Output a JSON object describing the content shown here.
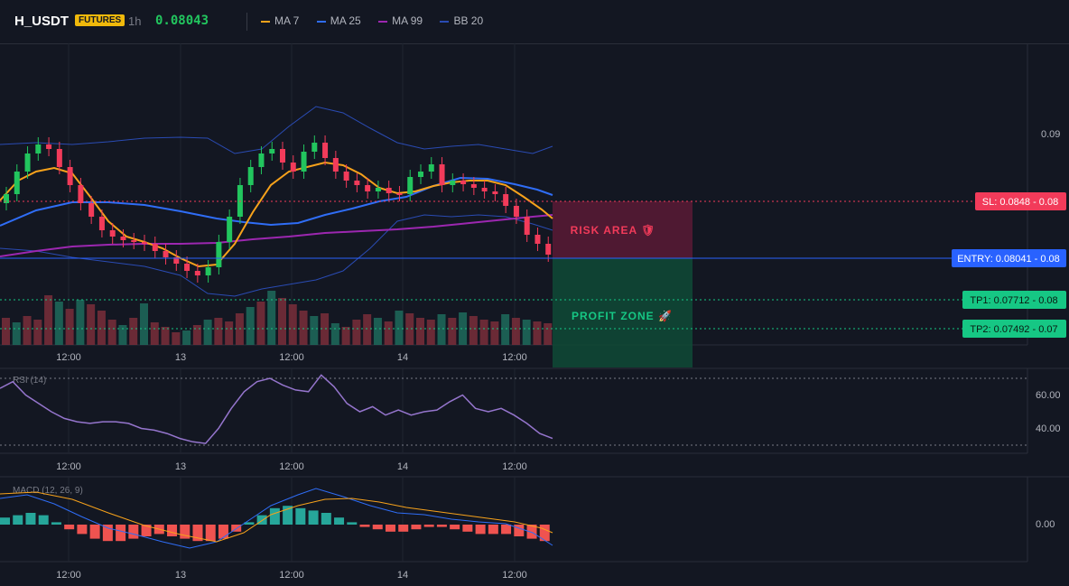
{
  "header": {
    "symbol": "H_USDT",
    "badge": "FUTURES",
    "timeframe": "1h",
    "price": "0.08043",
    "legend": [
      {
        "name": "MA 7",
        "color": "#f7a21b"
      },
      {
        "name": "MA 25",
        "color": "#2f6df6"
      },
      {
        "name": "MA 99",
        "color": "#9c27b0"
      },
      {
        "name": "BB 20",
        "color": "#2a4bb3"
      }
    ]
  },
  "price_axis": [
    "0.09"
  ],
  "time_axis": [
    "12:00",
    "13",
    "12:00",
    "14",
    "12:00"
  ],
  "levels": {
    "sl": "SL: 0.0848 - 0.08",
    "entry": "ENTRY: 0.08041 - 0.08",
    "tp1": "TP1: 0.07712 - 0.08",
    "tp2": "TP2: 0.07492 - 0.07"
  },
  "zones": {
    "risk": "RISK AREA 🛡",
    "profit": "PROFIT ZONE 🚀"
  },
  "rsi": {
    "label": "RSI (14)",
    "axis": [
      "60.00",
      "40.00"
    ],
    "values": [
      64,
      68,
      60,
      55,
      50,
      46,
      44,
      43,
      44,
      44,
      43,
      40,
      39,
      37,
      34,
      32,
      31,
      40,
      52,
      62,
      68,
      70,
      66,
      63,
      62,
      72,
      65,
      55,
      50,
      53,
      48,
      51,
      48,
      50,
      51,
      56,
      60,
      52,
      50,
      52,
      48,
      43,
      37,
      34
    ]
  },
  "macd": {
    "label": "MACD (12, 26, 9)",
    "axis": [
      "0.00"
    ],
    "hist": [
      3,
      4,
      5,
      4,
      1,
      -2,
      -4,
      -6,
      -7,
      -7,
      -6,
      -5,
      -4,
      -5,
      -6,
      -7,
      -7,
      -6,
      -3,
      1,
      4,
      7,
      8,
      7,
      6,
      5,
      3,
      1,
      -1,
      -2,
      -3,
      -3,
      -2,
      -1,
      -1,
      -2,
      -3,
      -4,
      -4,
      -4,
      -5,
      -6,
      -7
    ]
  },
  "colors": {
    "bull": "#22c55e",
    "bear": "#f23b5a",
    "sl": "#f23b5a",
    "entry": "#2962ff",
    "tp": "#16c784"
  }
}
